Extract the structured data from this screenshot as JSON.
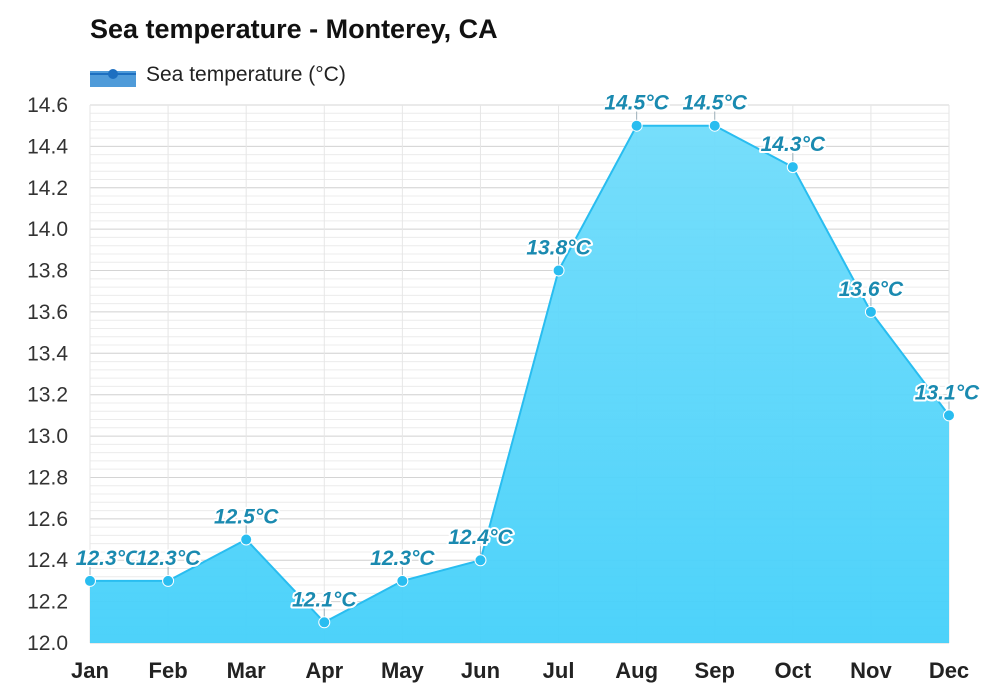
{
  "chart_data": {
    "type": "area",
    "title": "Sea temperature - Monterey, CA",
    "categories": [
      "Jan",
      "Feb",
      "Mar",
      "Apr",
      "May",
      "Jun",
      "Jul",
      "Aug",
      "Sep",
      "Oct",
      "Nov",
      "Dec"
    ],
    "series": [
      {
        "name": "Sea temperature (°C)",
        "values": [
          12.3,
          12.3,
          12.5,
          12.1,
          12.3,
          12.4,
          13.8,
          14.5,
          14.5,
          14.3,
          13.6,
          13.1
        ],
        "labels": [
          "12.3°C",
          "12.3°C",
          "12.5°C",
          "12.1°C",
          "12.3°C",
          "12.4°C",
          "13.8°C",
          "14.5°C",
          "14.5°C",
          "14.3°C",
          "13.6°C",
          "13.1°C"
        ],
        "color": "#29bdf0",
        "fill_top": "#6fdcfb",
        "fill_bottom": "#44d0fa"
      }
    ],
    "yticks": [
      "12.0",
      "12.2",
      "12.4",
      "12.6",
      "12.8",
      "13.0",
      "13.2",
      "13.4",
      "13.6",
      "13.8",
      "14.0",
      "14.2",
      "14.4",
      "14.6"
    ],
    "ylim": [
      12.0,
      14.6
    ],
    "grid": true,
    "legend_position": "top-left"
  }
}
